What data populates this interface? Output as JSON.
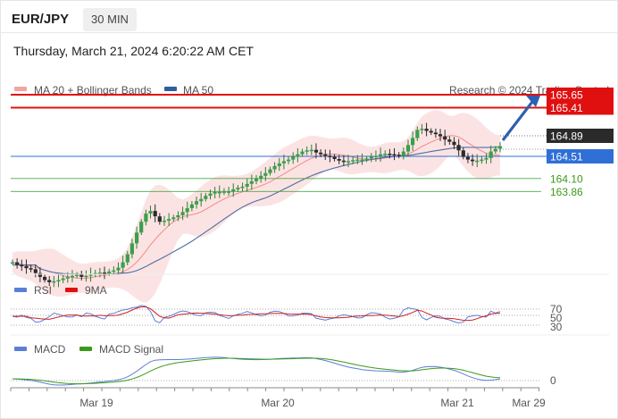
{
  "header": {
    "pair": "EUR/JPY",
    "timeframe": "30 MIN",
    "datetime": "Thursday, March 21, 2024 6:20:22 AM CET"
  },
  "main_panel": {
    "legend": [
      {
        "label": "MA 20 + Bollinger Bands",
        "color": "#f4a3a3"
      },
      {
        "label": "MA 50",
        "color": "#2f5f9e"
      }
    ],
    "credit": "Research © 2024 Trading Central",
    "levels": [
      {
        "value": 165.65,
        "label": "165.65",
        "style": "red-thick",
        "color": "#e01010"
      },
      {
        "value": 165.41,
        "label": "165.41",
        "style": "red-thick",
        "color": "#e01010"
      },
      {
        "value": 164.89,
        "label": "164.89",
        "style": "dotted-current",
        "color": "#333333"
      },
      {
        "value": 164.51,
        "label": "164.51",
        "style": "blue",
        "color": "#2f6fd6"
      },
      {
        "value": 164.1,
        "label": "164.10",
        "style": "green",
        "color": "#4aa84a"
      },
      {
        "value": 163.86,
        "label": "163.86",
        "style": "green",
        "color": "#4aa84a"
      }
    ]
  },
  "rsi_panel": {
    "legend": [
      {
        "label": "RSI",
        "color": "#5b7fd6"
      },
      {
        "label": "9MA",
        "color": "#e01010"
      }
    ],
    "levels": [
      "70",
      "50",
      "30"
    ]
  },
  "macd_panel": {
    "legend": [
      {
        "label": "MACD",
        "color": "#5b7fd6"
      },
      {
        "label": "MACD Signal",
        "color": "#3a9a1a"
      }
    ],
    "levels": [
      "0"
    ]
  },
  "x_axis": [
    "Mar 19",
    "Mar 20",
    "Mar 21",
    "Mar 29"
  ],
  "chart_data": {
    "type": "candlestick",
    "x_labels": [
      "Mar 19",
      "Mar 20",
      "Mar 21",
      "Mar 29"
    ],
    "price_levels": [
      165.65,
      165.41,
      164.89,
      164.51,
      164.1,
      163.86
    ],
    "close": [
      162.55,
      162.5,
      162.48,
      162.44,
      162.42,
      162.35,
      162.28,
      162.22,
      162.18,
      162.2,
      162.22,
      162.25,
      162.28,
      162.3,
      162.32,
      162.28,
      162.3,
      162.33,
      162.35,
      162.36,
      162.34,
      162.38,
      162.4,
      162.45,
      162.55,
      162.7,
      162.9,
      163.1,
      163.3,
      163.45,
      163.5,
      163.4,
      163.3,
      163.32,
      163.35,
      163.38,
      163.42,
      163.48,
      163.55,
      163.62,
      163.68,
      163.72,
      163.78,
      163.82,
      163.85,
      163.85,
      163.86,
      163.86,
      163.9,
      163.93,
      163.95,
      164.0,
      164.05,
      164.1,
      164.15,
      164.2,
      164.27,
      164.33,
      164.38,
      164.42,
      164.45,
      164.5,
      164.55,
      164.6,
      164.62,
      164.63,
      164.58,
      164.55,
      164.52,
      164.5,
      164.46,
      164.43,
      164.42,
      164.42,
      164.44,
      164.45,
      164.45,
      164.47,
      164.5,
      164.52,
      164.55,
      164.56,
      164.55,
      164.54,
      164.52,
      164.6,
      164.72,
      164.85,
      165.0,
      165.02,
      164.98,
      164.95,
      164.92,
      164.88,
      164.82,
      164.78,
      164.72,
      164.62,
      164.5,
      164.45,
      164.42,
      164.43,
      164.45,
      164.48,
      164.6,
      164.65,
      164.7
    ],
    "bollinger_ma20_band": "shaded pink envelope around price",
    "ma50": "smooth blue line trending up",
    "rsi": {
      "ob": 70,
      "mid": 50,
      "os": 30
    },
    "macd": {
      "zero": 0
    },
    "forecast": "up arrow toward 165.65"
  }
}
